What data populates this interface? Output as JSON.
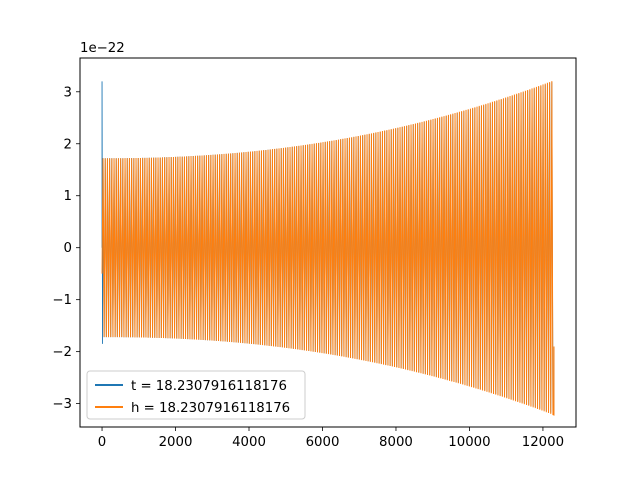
{
  "chart_data": {
    "type": "line",
    "title": "",
    "xlabel": "",
    "ylabel": "",
    "y_offset_text": "1e−22",
    "xlim": [
      -600,
      12900
    ],
    "ylim": [
      -3.45,
      3.65
    ],
    "x_ticks": [
      0,
      2000,
      4000,
      6000,
      8000,
      10000,
      12000
    ],
    "x_tick_labels": [
      "0",
      "2000",
      "4000",
      "6000",
      "8000",
      "10000",
      "12000"
    ],
    "y_ticks": [
      -3,
      -2,
      -1,
      0,
      1,
      2,
      3
    ],
    "y_tick_labels": [
      "−3",
      "−2",
      "−1",
      "0",
      "1",
      "2",
      "3"
    ],
    "grid": false,
    "legend_position": "lower-left",
    "series": [
      {
        "name": "t = 18.2307916118176",
        "color": "#1f77b4",
        "signal": {
          "kind": "chirp",
          "x_start": 0,
          "x_end": 12300,
          "amplitude_start": 1.72,
          "amplitude_end": 3.2,
          "glitch": {
            "x": 0,
            "max": 3.2,
            "min": -1.85
          }
        }
      },
      {
        "name": "h = 18.2307916118176",
        "color": "#ff7f0e",
        "signal": {
          "kind": "chirp",
          "x_start": 0,
          "x_end": 12300,
          "amplitude_start": 1.72,
          "amplitude_end": 3.22,
          "start_value": -0.5
        }
      }
    ]
  }
}
